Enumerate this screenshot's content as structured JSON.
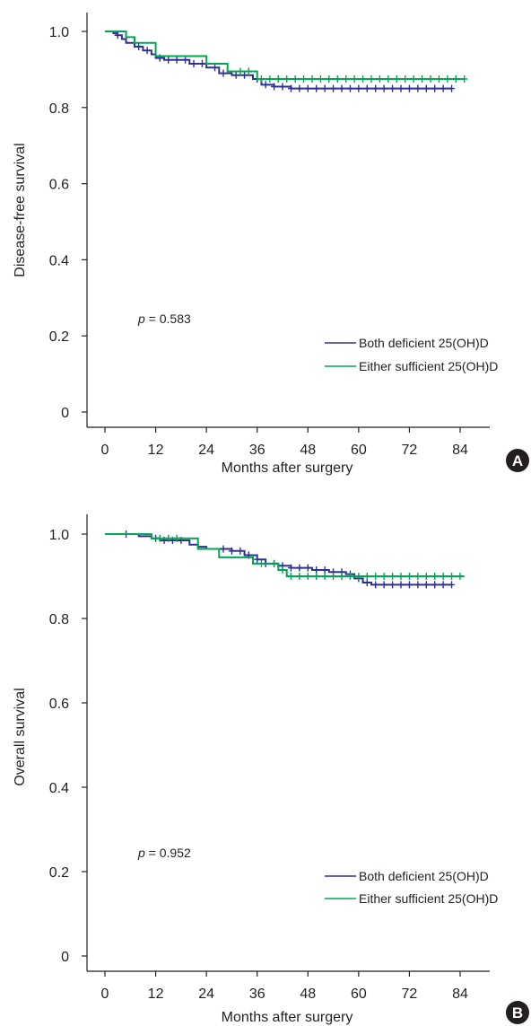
{
  "chart_data": [
    {
      "type": "line",
      "panel_label": "A",
      "xlabel": "Months after surgery",
      "ylabel": "Disease-free survival",
      "xlim": [
        0,
        84
      ],
      "ylim": [
        0,
        1.0
      ],
      "x_ticks": [
        "0",
        "12",
        "24",
        "36",
        "48",
        "60",
        "72",
        "84"
      ],
      "y_ticks": [
        "0",
        "0.2",
        "0.4",
        "0.6",
        "0.8",
        "1.0"
      ],
      "annotation": {
        "p_symbol": "p",
        "p_text": " = 0.583"
      },
      "legend_position": "lower-right",
      "series": [
        {
          "name": "Both deficient 25(OH)D",
          "color": "#2e3192",
          "steps": [
            [
              0,
              1.0
            ],
            [
              2,
              0.995
            ],
            [
              3,
              0.99
            ],
            [
              4,
              0.98
            ],
            [
              5,
              0.97
            ],
            [
              7,
              0.96
            ],
            [
              9,
              0.95
            ],
            [
              11,
              0.94
            ],
            [
              12,
              0.93
            ],
            [
              14,
              0.925
            ],
            [
              20,
              0.915
            ],
            [
              24,
              0.905
            ],
            [
              27,
              0.89
            ],
            [
              30,
              0.885
            ],
            [
              35,
              0.875
            ],
            [
              37,
              0.86
            ],
            [
              40,
              0.855
            ],
            [
              44,
              0.85
            ],
            [
              82,
              0.85
            ]
          ],
          "censor_x": [
            3,
            8,
            10,
            13,
            15,
            17,
            19,
            21,
            23,
            26,
            28,
            31,
            33,
            36,
            38,
            40,
            42,
            44,
            46,
            48,
            50,
            52,
            54,
            56,
            58,
            60,
            62,
            64,
            66,
            68,
            70,
            72,
            74,
            76,
            78,
            80,
            82
          ]
        },
        {
          "name": "Either sufficient 25(OH)D",
          "color": "#00a651",
          "steps": [
            [
              0,
              1.0
            ],
            [
              5,
              0.985
            ],
            [
              7,
              0.97
            ],
            [
              12,
              0.935
            ],
            [
              24,
              0.915
            ],
            [
              29,
              0.895
            ],
            [
              36,
              0.875
            ],
            [
              85,
              0.875
            ]
          ],
          "censor_x": [
            32,
            34,
            37,
            39,
            41,
            43,
            45,
            47,
            49,
            51,
            53,
            55,
            57,
            59,
            61,
            63,
            65,
            67,
            69,
            71,
            73,
            75,
            77,
            79,
            81,
            83,
            85
          ]
        }
      ]
    },
    {
      "type": "line",
      "panel_label": "B",
      "xlabel": "Months after surgery",
      "ylabel": "Overall survival",
      "xlim": [
        0,
        84
      ],
      "ylim": [
        0,
        1.0
      ],
      "x_ticks": [
        "0",
        "12",
        "24",
        "36",
        "48",
        "60",
        "72",
        "84"
      ],
      "y_ticks": [
        "0",
        "0.2",
        "0.4",
        "0.6",
        "0.8",
        "1.0"
      ],
      "annotation": {
        "p_symbol": "p",
        "p_text": " = 0.952"
      },
      "legend_position": "lower-right",
      "series": [
        {
          "name": "Both deficient 25(OH)D",
          "color": "#2e3192",
          "steps": [
            [
              0,
              1.0
            ],
            [
              8,
              0.995
            ],
            [
              11,
              0.99
            ],
            [
              13,
              0.985
            ],
            [
              20,
              0.975
            ],
            [
              22,
              0.97
            ],
            [
              24,
              0.965
            ],
            [
              30,
              0.96
            ],
            [
              33,
              0.95
            ],
            [
              36,
              0.94
            ],
            [
              38,
              0.93
            ],
            [
              41,
              0.925
            ],
            [
              44,
              0.92
            ],
            [
              49,
              0.915
            ],
            [
              53,
              0.91
            ],
            [
              57,
              0.905
            ],
            [
              59,
              0.895
            ],
            [
              61,
              0.885
            ],
            [
              63,
              0.88
            ],
            [
              82,
              0.88
            ]
          ],
          "censor_x": [
            5,
            12,
            14,
            16,
            18,
            28,
            30,
            32,
            34,
            36,
            38,
            40,
            42,
            44,
            46,
            48,
            50,
            52,
            54,
            56,
            58,
            60,
            62,
            64,
            66,
            68,
            70,
            72,
            74,
            76,
            78,
            80,
            82
          ]
        },
        {
          "name": "Either sufficient 25(OH)D",
          "color": "#00a651",
          "steps": [
            [
              0,
              1.0
            ],
            [
              11,
              0.99
            ],
            [
              22,
              0.965
            ],
            [
              27,
              0.945
            ],
            [
              35,
              0.93
            ],
            [
              41,
              0.915
            ],
            [
              43,
              0.9
            ],
            [
              85,
              0.9
            ]
          ],
          "censor_x": [
            13,
            15,
            17,
            37,
            40,
            42,
            44,
            46,
            48,
            50,
            52,
            54,
            56,
            58,
            60,
            62,
            64,
            66,
            68,
            70,
            72,
            74,
            76,
            78,
            80,
            82,
            84
          ]
        }
      ]
    }
  ]
}
